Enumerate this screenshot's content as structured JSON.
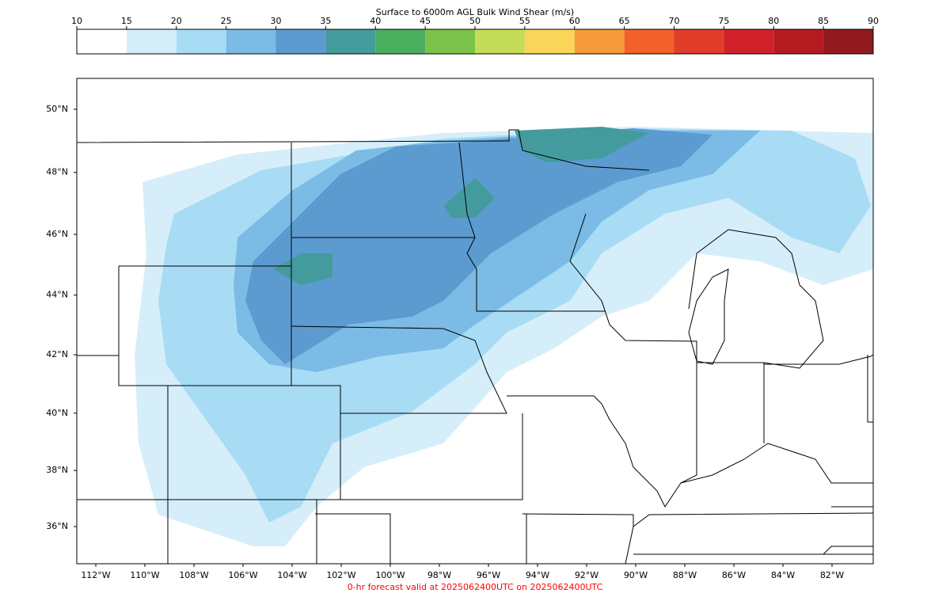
{
  "colorbar": {
    "title": "Surface to 6000m AGL Bulk Wind Shear (m/s)",
    "ticks": [
      10,
      15,
      20,
      25,
      30,
      35,
      40,
      45,
      50,
      55,
      60,
      65,
      70,
      75,
      80,
      85,
      90
    ],
    "colors": [
      "#ffffff",
      "#d6eefa",
      "#a8dcf5",
      "#7bbbe5",
      "#5b9bd0",
      "#449b9d",
      "#4aae5f",
      "#7cc24a",
      "#c5dc5a",
      "#f9d55a",
      "#f69b3b",
      "#f26129",
      "#e13d29",
      "#d2202a",
      "#b51c22",
      "#901a1d"
    ]
  },
  "map": {
    "lat_ticks": [
      {
        "value": 50,
        "label": "50°N"
      },
      {
        "value": 48,
        "label": "48°N"
      },
      {
        "value": 46,
        "label": "46°N"
      },
      {
        "value": 44,
        "label": "44°N"
      },
      {
        "value": 42,
        "label": "42°N"
      },
      {
        "value": 40,
        "label": "40°N"
      },
      {
        "value": 38,
        "label": "38°N"
      },
      {
        "value": 36,
        "label": "36°N"
      }
    ],
    "lon_ticks": [
      {
        "value": -112,
        "label": "112°W"
      },
      {
        "value": -110,
        "label": "110°W"
      },
      {
        "value": -108,
        "label": "108°W"
      },
      {
        "value": -106,
        "label": "106°W"
      },
      {
        "value": -104,
        "label": "104°W"
      },
      {
        "value": -102,
        "label": "102°W"
      },
      {
        "value": -100,
        "label": "100°W"
      },
      {
        "value": -98,
        "label": "98°W"
      },
      {
        "value": -96,
        "label": "96°W"
      },
      {
        "value": -94,
        "label": "94°W"
      },
      {
        "value": -92,
        "label": "92°W"
      },
      {
        "value": -90,
        "label": "90°W"
      },
      {
        "value": -88,
        "label": "88°W"
      },
      {
        "value": -86,
        "label": "86°W"
      },
      {
        "value": -84,
        "label": "84°W"
      },
      {
        "value": -82,
        "label": "82°W"
      }
    ]
  },
  "footer": "0-hr forecast valid at 2025062400UTC on 2025062400UTC"
}
